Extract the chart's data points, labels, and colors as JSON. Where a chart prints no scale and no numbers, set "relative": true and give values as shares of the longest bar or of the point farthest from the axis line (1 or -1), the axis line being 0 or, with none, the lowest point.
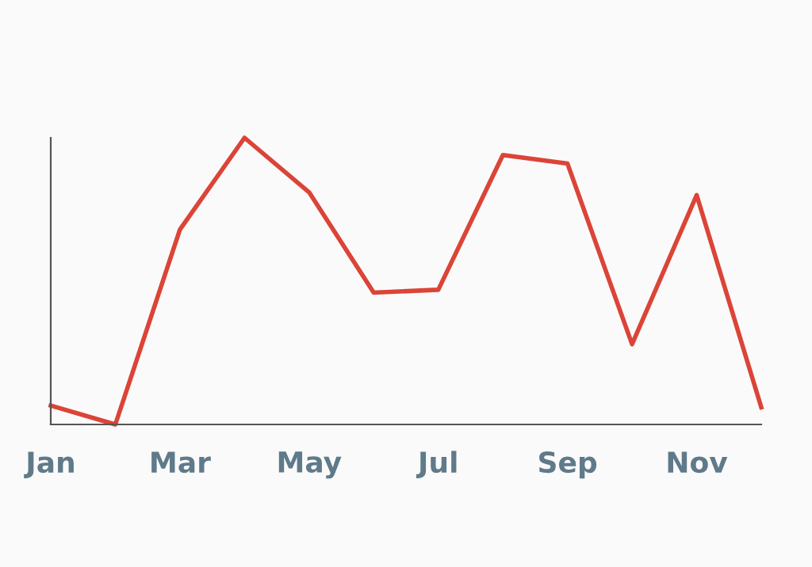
{
  "chart_data": {
    "type": "line",
    "relative": true,
    "categories": [
      "Jan",
      null,
      "Mar",
      null,
      "May",
      null,
      "Jul",
      null,
      "Sep",
      null,
      "Nov",
      null
    ],
    "series": [
      {
        "color": "#db4437",
        "values": [
          0.066,
          0,
          0.68,
          1,
          0.81,
          0.46,
          0.47,
          0.94,
          0.91,
          0.28,
          0.8,
          0.06
        ]
      }
    ],
    "grid": false,
    "legend": false,
    "marker": "none",
    "line_style": "solid"
  }
}
